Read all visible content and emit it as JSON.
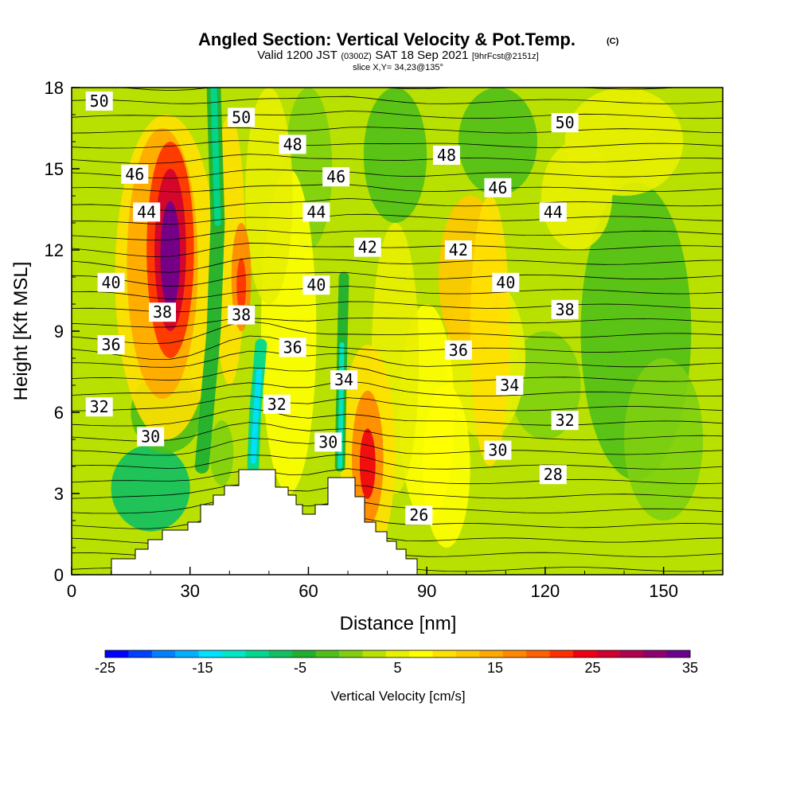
{
  "chart_data": {
    "type": "heatmap",
    "title": "Angled Section: Vertical Velocity & Pot.Temp.",
    "title_suffix": "(C)",
    "subtitle": {
      "a": "Valid 1200 JST",
      "b": "(0300Z)",
      "c": "SAT 18 Sep 2021",
      "d": "[9hrFcst@2151z]"
    },
    "slice_label": "slice X,Y= 34,23@135°",
    "xlabel": "Distance [nm]",
    "ylabel": "Height [Kft MSL]",
    "xlim": [
      0,
      165
    ],
    "ylim": [
      0,
      18
    ],
    "xticks": [
      "0",
      "30",
      "60",
      "90",
      "120",
      "150"
    ],
    "yticks": [
      "0",
      "3",
      "6",
      "9",
      "12",
      "15",
      "18"
    ],
    "colorbar": {
      "title": "Vertical Velocity [cm/s]",
      "range": [
        -25,
        35
      ],
      "ticks": [
        "-25",
        "-15",
        "-5",
        "5",
        "15",
        "25",
        "35"
      ],
      "colors": [
        "#0000ff",
        "#0040ff",
        "#0080ff",
        "#00b0ff",
        "#00e0ff",
        "#00e8c8",
        "#00d890",
        "#10c060",
        "#20b030",
        "#50c018",
        "#80d010",
        "#b8e000",
        "#e8f000",
        "#ffff00",
        "#ffe000",
        "#ffc800",
        "#ffa800",
        "#ff8800",
        "#ff6000",
        "#ff3000",
        "#f00010",
        "#d00030",
        "#b00050",
        "#900070",
        "#6a0090"
      ]
    },
    "theta_contours": [
      {
        "label": "26",
        "x": 88,
        "y": 2.2
      },
      {
        "label": "28",
        "x": 122,
        "y": 3.7
      },
      {
        "label": "30",
        "x": 20,
        "y": 5.1
      },
      {
        "label": "30",
        "x": 65,
        "y": 4.9
      },
      {
        "label": "30",
        "x": 108,
        "y": 4.6
      },
      {
        "label": "32",
        "x": 7,
        "y": 6.2
      },
      {
        "label": "32",
        "x": 52,
        "y": 6.3
      },
      {
        "label": "32",
        "x": 125,
        "y": 5.7
      },
      {
        "label": "34",
        "x": 69,
        "y": 7.2
      },
      {
        "label": "34",
        "x": 111,
        "y": 7.0
      },
      {
        "label": "36",
        "x": 10,
        "y": 8.5
      },
      {
        "label": "36",
        "x": 56,
        "y": 8.4
      },
      {
        "label": "36",
        "x": 98,
        "y": 8.3
      },
      {
        "label": "38",
        "x": 23,
        "y": 9.7
      },
      {
        "label": "38",
        "x": 43,
        "y": 9.6
      },
      {
        "label": "38",
        "x": 125,
        "y": 9.8
      },
      {
        "label": "40",
        "x": 10,
        "y": 10.8
      },
      {
        "label": "40",
        "x": 62,
        "y": 10.7
      },
      {
        "label": "40",
        "x": 110,
        "y": 10.8
      },
      {
        "label": "42",
        "x": 75,
        "y": 12.1
      },
      {
        "label": "42",
        "x": 98,
        "y": 12.0
      },
      {
        "label": "44",
        "x": 19,
        "y": 13.4
      },
      {
        "label": "44",
        "x": 62,
        "y": 13.4
      },
      {
        "label": "44",
        "x": 122,
        "y": 13.4
      },
      {
        "label": "46",
        "x": 16,
        "y": 14.8
      },
      {
        "label": "46",
        "x": 67,
        "y": 14.7
      },
      {
        "label": "46",
        "x": 108,
        "y": 14.3
      },
      {
        "label": "48",
        "x": 56,
        "y": 15.9
      },
      {
        "label": "48",
        "x": 95,
        "y": 15.5
      },
      {
        "label": "50",
        "x": 7,
        "y": 17.5
      },
      {
        "label": "50",
        "x": 43,
        "y": 16.9
      },
      {
        "label": "50",
        "x": 125,
        "y": 16.7
      }
    ]
  }
}
